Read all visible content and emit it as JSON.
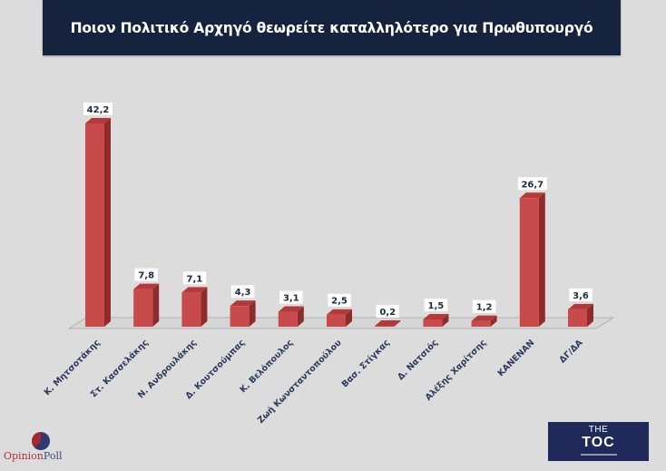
{
  "header": {
    "title": "Ποιον Πολιτικό Αρχηγό θεωρείτε καταλληλότερο για Πρωθυπουργό"
  },
  "chart_data": {
    "type": "bar",
    "title": "Ποιον Πολιτικό Αρχηγό θεωρείτε καταλληλότερο για Πρωθυπουργό",
    "xlabel": "",
    "ylabel": "",
    "categories": [
      "Κ. Μητσοτάκης",
      "Στ. Κασσελάκης",
      "Ν. Ανδρουλάκης",
      "Δ. Κουτσούμπας",
      "Κ. Βελόπουλος",
      "Ζωή Κωνσταντοπούλου",
      "Βασ. Στίγκας",
      "Δ. Νατσιός",
      "Αλέξης Χαρίτσης",
      "ΚΑΝΕΝΑΝ",
      "ΔΓ/ΔΑ"
    ],
    "values": [
      42.2,
      7.8,
      7.1,
      4.3,
      3.1,
      2.5,
      0.2,
      1.5,
      1.2,
      26.7,
      3.6
    ],
    "value_labels": [
      "42,2",
      "7,8",
      "7,1",
      "4,3",
      "3,1",
      "2,5",
      "0,2",
      "1,5",
      "1,2",
      "26,7",
      "3,6"
    ],
    "ylim": [
      0,
      45
    ],
    "grid": false,
    "legend": "none",
    "style": "3d-column",
    "bar_color": "#c94a4a",
    "bar_side_color": "#8e2b2b",
    "bar_top_color": "#b23a3a"
  },
  "footer": {
    "left_logo": {
      "part1": "Opinion",
      "part2": "Poll",
      "icon": "pie-chart-icon"
    },
    "right_logo": {
      "line1": "THE",
      "line2": "TOC"
    }
  }
}
